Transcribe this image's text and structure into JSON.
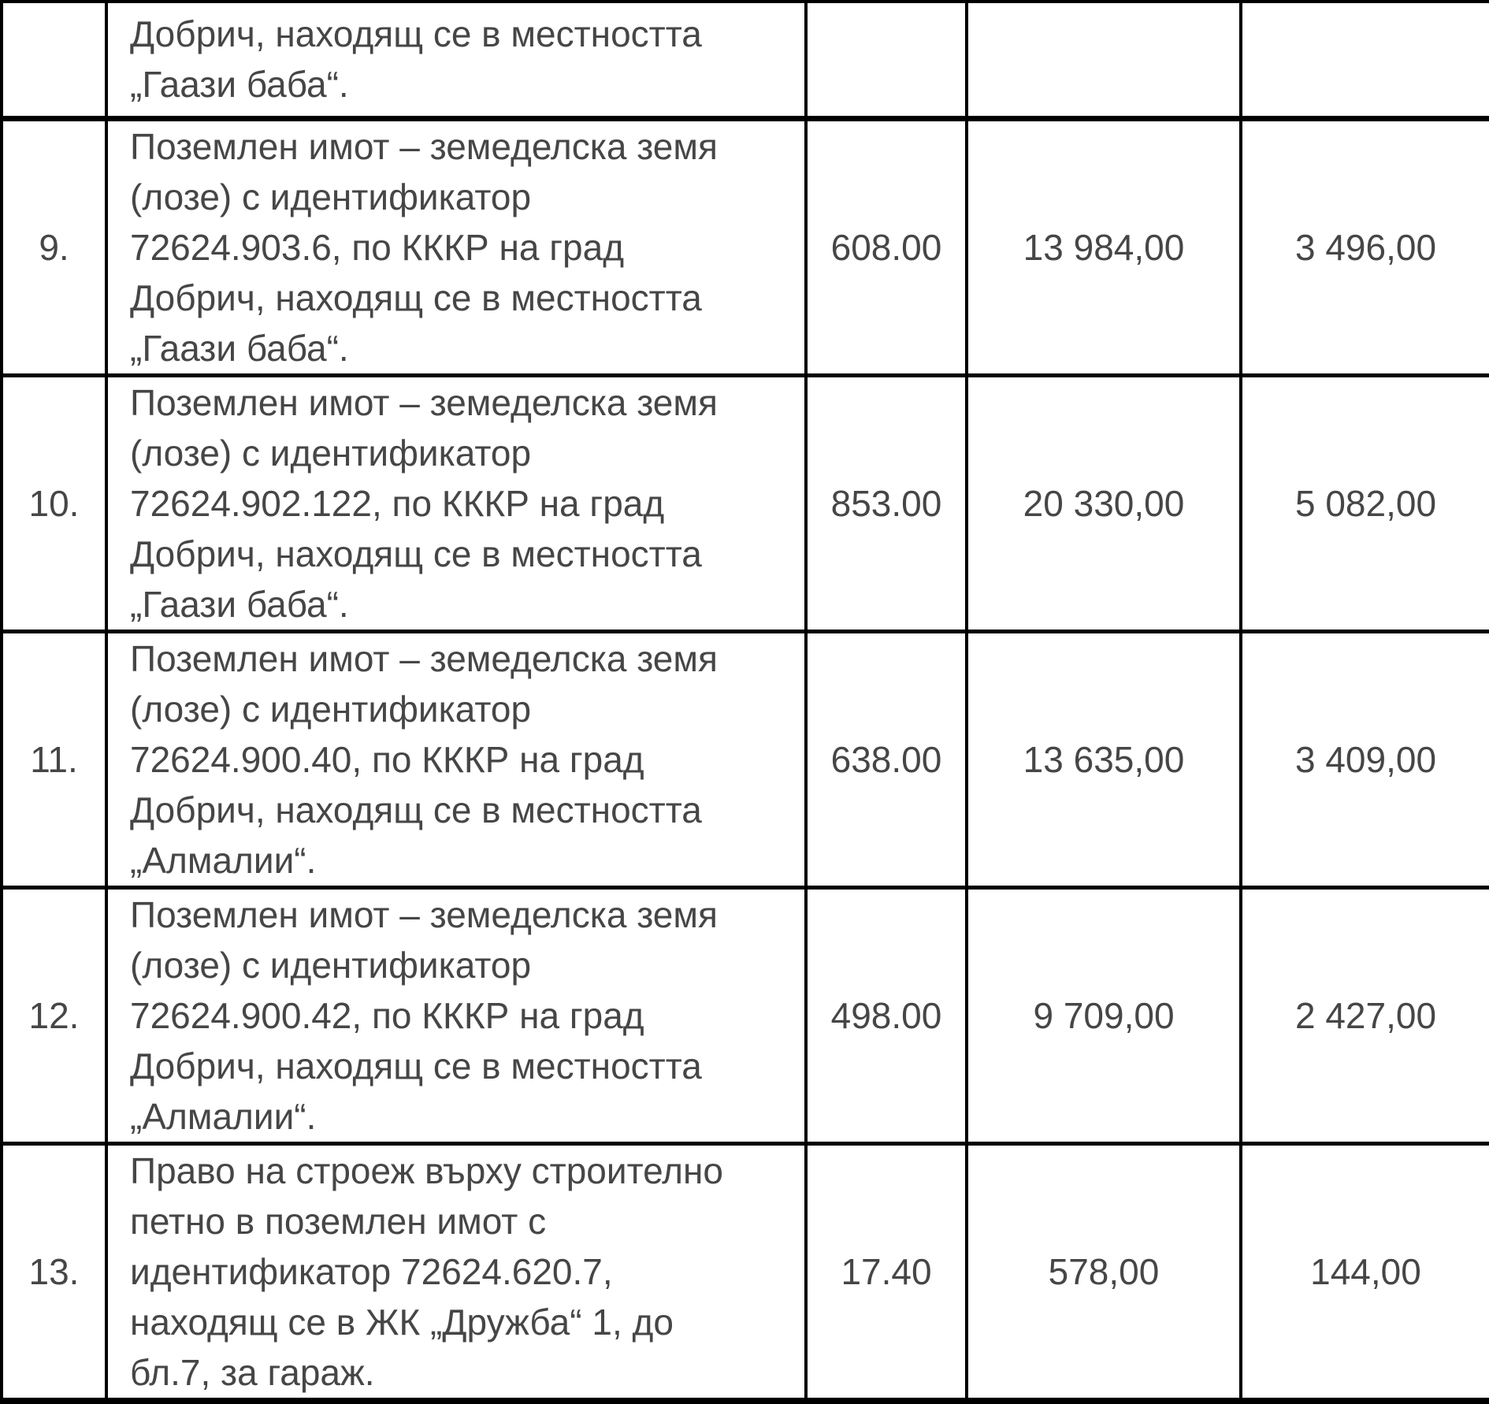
{
  "table": {
    "partial_row": {
      "num": "",
      "description_lines": [
        "Добрич, находящ се в местността",
        "„Гаази баба“."
      ],
      "area": "",
      "value": "",
      "tax": ""
    },
    "rows": [
      {
        "num": "9.",
        "description_lines": [
          "Поземлен имот – земеделска земя",
          "(лозе) с идентификатор",
          "72624.903.6, по КККР на град",
          "Добрич, находящ се в местността",
          "„Гаази баба“."
        ],
        "area": "608.00",
        "value": "13 984,00",
        "tax": "3 496,00"
      },
      {
        "num": "10.",
        "description_lines": [
          "Поземлен имот – земеделска земя",
          "(лозе) с идентификатор",
          "72624.902.122, по КККР на град",
          "Добрич, находящ се в местността",
          "„Гаази баба“."
        ],
        "area": "853.00",
        "value": "20 330,00",
        "tax": "5 082,00"
      },
      {
        "num": "11.",
        "description_lines": [
          "Поземлен имот – земеделска земя",
          "(лозе) с идентификатор",
          "72624.900.40, по КККР на град",
          "Добрич, находящ се в местността",
          "„Алмалии“."
        ],
        "area": "638.00",
        "value": "13 635,00",
        "tax": "3 409,00"
      },
      {
        "num": "12.",
        "description_lines": [
          "Поземлен имот – земеделска земя",
          "(лозе) с идентификатор",
          "72624.900.42, по КККР на град",
          "Добрич, находящ се в местността",
          "„Алмалии“."
        ],
        "area": "498.00",
        "value": "9 709,00",
        "tax": "2 427,00"
      },
      {
        "num": "13.",
        "description_lines": [
          "Право на строеж върху строително",
          "петно в поземлен имот с",
          "идентификатор 72624.620.7,",
          "находящ се в ЖК „Дружба“ 1, до",
          "бл.7, за гараж."
        ],
        "area": "17.40",
        "value": "578,00",
        "tax": "144,00"
      }
    ]
  }
}
